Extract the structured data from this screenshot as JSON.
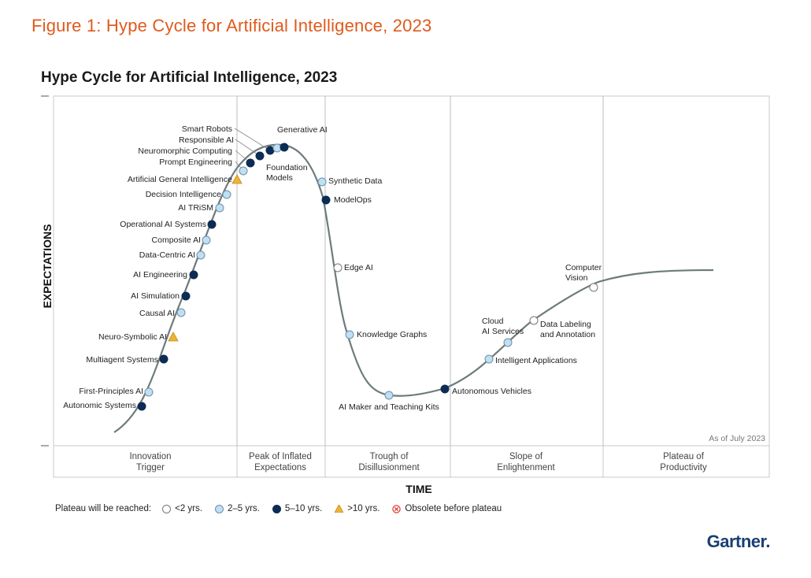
{
  "figure_title": "Figure 1: Hype Cycle for Artificial Intelligence, 2023",
  "brand": "Gartner.",
  "chart_data": {
    "type": "scatter",
    "title": "Hype Cycle for Artificial Intelligence, 2023",
    "xlabel": "TIME",
    "ylabel": "EXPECTATIONS",
    "note": "As of July 2023",
    "phases": [
      {
        "lines": [
          "Innovation",
          "Trigger"
        ]
      },
      {
        "lines": [
          "Peak of Inflated",
          "Expectations"
        ]
      },
      {
        "lines": [
          "Trough of",
          "Disillusionment"
        ]
      },
      {
        "lines": [
          "Slope of",
          "Enlightenment"
        ]
      },
      {
        "lines": [
          "Plateau of",
          "Productivity"
        ]
      }
    ],
    "legend_title": "Plateau will be reached:",
    "legend": [
      {
        "key": "lt2",
        "label": "<2 yrs.",
        "color": "#ffffff"
      },
      {
        "key": "2to5",
        "label": "2–5 yrs.",
        "color": "#bfe0f2"
      },
      {
        "key": "5to10",
        "label": "5–10 yrs.",
        "color": "#0d2c54"
      },
      {
        "key": "gt10",
        "label": ">10 yrs.",
        "color": "#f2b233"
      },
      {
        "key": "obsolete",
        "label": "Obsolete before plateau",
        "color": "#e0342c"
      }
    ],
    "points": [
      {
        "label": "Autonomic Systems",
        "cat": "5to10"
      },
      {
        "label": "First-Principles AI",
        "cat": "2to5"
      },
      {
        "label": "Multiagent Systems",
        "cat": "5to10"
      },
      {
        "label": "Neuro-Symbolic AI",
        "cat": "gt10"
      },
      {
        "label": "Causal AI",
        "cat": "2to5"
      },
      {
        "label": "AI Simulation",
        "cat": "5to10"
      },
      {
        "label": "AI Engineering",
        "cat": "5to10"
      },
      {
        "label": "Data-Centric AI",
        "cat": "2to5"
      },
      {
        "label": "Composite AI",
        "cat": "2to5"
      },
      {
        "label": "Operational AI Systems",
        "cat": "5to10"
      },
      {
        "label": "AI TRiSM",
        "cat": "2to5"
      },
      {
        "label": "Decision Intelligence",
        "cat": "2to5"
      },
      {
        "label": "Artificial General Intelligence",
        "cat": "gt10"
      },
      {
        "label": "Prompt Engineering",
        "cat": "2to5"
      },
      {
        "label": "Neuromorphic Computing",
        "cat": "5to10"
      },
      {
        "label": "Responsible AI",
        "cat": "5to10"
      },
      {
        "label": "Smart Robots",
        "cat": "5to10"
      },
      {
        "label": "Generative AI",
        "cat": "2to5"
      },
      {
        "label": "Foundation Models",
        "cat": "5to10"
      },
      {
        "label": "Synthetic Data",
        "cat": "2to5"
      },
      {
        "label": "ModelOps",
        "cat": "5to10"
      },
      {
        "label": "Edge AI",
        "cat": "lt2"
      },
      {
        "label": "Knowledge Graphs",
        "cat": "2to5"
      },
      {
        "label": "AI Maker and Teaching Kits",
        "cat": "2to5"
      },
      {
        "label": "Autonomous Vehicles",
        "cat": "5to10"
      },
      {
        "label": "Intelligent Applications",
        "cat": "2to5"
      },
      {
        "label": "Cloud AI Services",
        "cat": "2to5"
      },
      {
        "label": "Data Labeling and Annotation",
        "cat": "lt2"
      },
      {
        "label": "Computer Vision",
        "cat": "lt2"
      }
    ]
  }
}
